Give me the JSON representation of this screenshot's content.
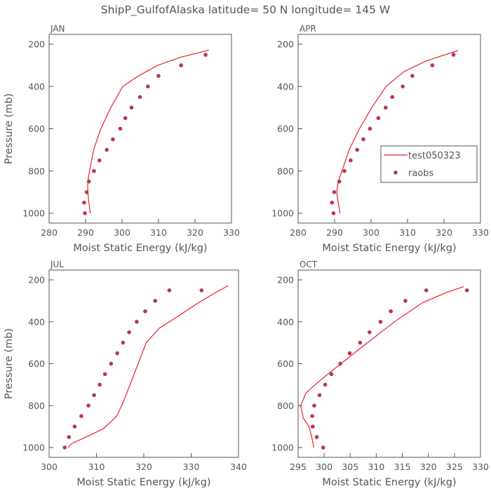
{
  "figure": {
    "title": "ShipP_GulfofAlaska   latitude= 50 N longitude= 145 W",
    "ylabel": "Pressure (mb)",
    "xlabel": "Moist Static Energy (kJ/kg)"
  },
  "legend": {
    "model_label": "test050323",
    "obs_label": "raobs"
  },
  "colors": {
    "model_line": "#e8202a",
    "obs_marker": "#b8345a",
    "axis": "#555555"
  },
  "chart_data": [
    {
      "type": "line",
      "panel": "JAN",
      "xlim": [
        280,
        330
      ],
      "ylim": [
        1000,
        200
      ],
      "xticks": [
        280,
        290,
        300,
        310,
        320,
        330
      ],
      "yticks": [
        200,
        400,
        600,
        800,
        1000
      ],
      "series": [
        {
          "name": "test050323",
          "kind": "line",
          "x": [
            291.3,
            290.9,
            290.6,
            290.6,
            291.1,
            292.2,
            294.2,
            296.9,
            300.2,
            304.5,
            309.8,
            316.0,
            323.8
          ],
          "y": [
            1000,
            950,
            900,
            850,
            800,
            700,
            600,
            500,
            400,
            350,
            300,
            262,
            228
          ]
        },
        {
          "name": "raobs",
          "kind": "scatter",
          "x": [
            289.8,
            289.6,
            290.3,
            290.9,
            292.3,
            293.8,
            295.8,
            297.5,
            299.5,
            300.9,
            302.6,
            304.9,
            307.1,
            310.0,
            316.2,
            322.9
          ],
          "y": [
            1000,
            950,
            900,
            850,
            800,
            750,
            700,
            650,
            600,
            550,
            500,
            450,
            400,
            350,
            300,
            250
          ]
        }
      ]
    },
    {
      "type": "line",
      "panel": "APR",
      "xlim": [
        280,
        330
      ],
      "ylim": [
        1000,
        200
      ],
      "xticks": [
        280,
        290,
        300,
        310,
        320,
        330
      ],
      "yticks": [
        200,
        400,
        600,
        800,
        1000
      ],
      "series": [
        {
          "name": "test050323",
          "kind": "line",
          "x": [
            291.5,
            291.0,
            290.6,
            291.0,
            292.0,
            294.0,
            296.8,
            300.2,
            304.1,
            309.0,
            315.0,
            323.8
          ],
          "y": [
            1000,
            950,
            900,
            850,
            800,
            700,
            600,
            500,
            400,
            330,
            280,
            230
          ]
        },
        {
          "name": "raobs",
          "kind": "scatter",
          "x": [
            289.7,
            289.3,
            289.9,
            291.3,
            292.7,
            294.4,
            296.2,
            297.9,
            299.7,
            302.0,
            304.0,
            305.8,
            308.7,
            311.3,
            316.8,
            322.6
          ],
          "y": [
            1000,
            950,
            900,
            850,
            800,
            750,
            700,
            650,
            600,
            550,
            500,
            450,
            400,
            350,
            300,
            250
          ]
        }
      ]
    },
    {
      "type": "line",
      "panel": "JUL",
      "xlim": [
        300,
        340
      ],
      "ylim": [
        1000,
        200
      ],
      "xticks": [
        300,
        310,
        320,
        330,
        340
      ],
      "yticks": [
        200,
        400,
        600,
        800,
        1000
      ],
      "series": [
        {
          "name": "test050323",
          "kind": "line",
          "x": [
            304.0,
            304.9,
            307.8,
            311.5,
            314.3,
            315.7,
            317.1,
            318.8,
            320.5,
            323.3,
            326.8,
            330.8,
            334.8,
            337.8
          ],
          "y": [
            1000,
            980,
            950,
            910,
            850,
            780,
            700,
            600,
            500,
            430,
            380,
            320,
            265,
            228
          ]
        },
        {
          "name": "raobs",
          "kind": "scatter",
          "x": [
            303.3,
            304.2,
            305.4,
            306.8,
            308.3,
            309.5,
            310.7,
            311.8,
            313.1,
            314.4,
            315.6,
            316.9,
            318.5,
            320.3,
            322.4,
            325.4,
            332.2
          ],
          "y": [
            1000,
            950,
            900,
            850,
            800,
            750,
            700,
            650,
            600,
            550,
            500,
            450,
            400,
            350,
            300,
            250,
            250
          ]
        }
      ]
    },
    {
      "type": "line",
      "panel": "OCT",
      "xlim": [
        295,
        330
      ],
      "ylim": [
        1000,
        200
      ],
      "xticks": [
        295,
        300,
        305,
        310,
        315,
        320,
        325,
        330
      ],
      "yticks": [
        200,
        400,
        600,
        800,
        1000
      ],
      "series": [
        {
          "name": "test050323",
          "kind": "line",
          "x": [
            298.0,
            297.7,
            297.1,
            296.0,
            295.5,
            296.5,
            299.2,
            303.2,
            308.3,
            313.5,
            318.8,
            323.5,
            326.8
          ],
          "y": [
            1000,
            960,
            900,
            860,
            800,
            740,
            680,
            600,
            500,
            400,
            310,
            260,
            232
          ]
        },
        {
          "name": "raobs",
          "kind": "scatter",
          "x": [
            299.8,
            298.6,
            297.8,
            297.7,
            298.1,
            299.1,
            300.2,
            301.4,
            303.1,
            304.9,
            306.9,
            308.7,
            310.8,
            312.8,
            315.6,
            319.6,
            327.4
          ],
          "y": [
            1000,
            950,
            900,
            850,
            800,
            750,
            700,
            650,
            600,
            550,
            500,
            450,
            400,
            350,
            300,
            250,
            250
          ]
        }
      ]
    }
  ]
}
